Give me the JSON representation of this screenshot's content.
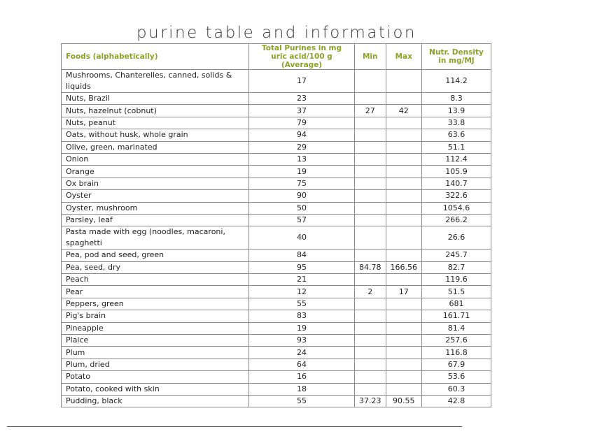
{
  "title": "purine table and information",
  "headers": [
    "Foods (alphabetically)",
    "Total Purines in mg uric acid/100 g (Average)",
    "Min",
    "Max",
    "Nutr. Density in mg/MJ"
  ],
  "rows": [
    [
      "Mushrooms, Chanterelles, canned, solids & liquids",
      "17",
      "",
      "",
      "114.2"
    ],
    [
      "Nuts, Brazil",
      "23",
      "",
      "",
      "8.3"
    ],
    [
      "Nuts, hazelnut (cobnut)",
      "37",
      "27",
      "42",
      "13.9"
    ],
    [
      "Nuts, peanut",
      "79",
      "",
      "",
      "33.8"
    ],
    [
      "Oats, without husk, whole grain",
      "94",
      "",
      "",
      "63.6"
    ],
    [
      "Olive, green, marinated",
      "29",
      "",
      "",
      "51.1"
    ],
    [
      "Onion",
      "13",
      "",
      "",
      "112.4"
    ],
    [
      "Orange",
      "19",
      "",
      "",
      "105.9"
    ],
    [
      "Ox brain",
      "75",
      "",
      "",
      "140.7"
    ],
    [
      "Oyster",
      "90",
      "",
      "",
      "322.6"
    ],
    [
      "Oyster, mushroom",
      "50",
      "",
      "",
      "1054.6"
    ],
    [
      "Parsley, leaf",
      "57",
      "",
      "",
      "266.2"
    ],
    [
      "Pasta made with egg (noodles, macaroni, spaghetti",
      "40",
      "",
      "",
      "26.6"
    ],
    [
      "Pea, pod and seed, green",
      "84",
      "",
      "",
      "245.7"
    ],
    [
      "Pea, seed, dry",
      "95",
      "84.78",
      "166.56",
      "82.7"
    ],
    [
      "Peach",
      "21",
      "",
      "",
      "119.6"
    ],
    [
      "Pear",
      "12",
      "2",
      "17",
      "51.5"
    ],
    [
      "Peppers, green",
      "55",
      "",
      "",
      "681"
    ],
    [
      "Pig's brain",
      "83",
      "",
      "",
      "161.71"
    ],
    [
      "Pineapple",
      "19",
      "",
      "",
      "81.4"
    ],
    [
      "Plaice",
      "93",
      "",
      "",
      "257.6"
    ],
    [
      "Plum",
      "24",
      "",
      "",
      "116.8"
    ],
    [
      "Plum, dried",
      "64",
      "",
      "",
      "67.9"
    ],
    [
      "Potato",
      "16",
      "",
      "",
      "53.6"
    ],
    [
      "Potato, cooked with skin",
      "18",
      "",
      "",
      "60.3"
    ],
    [
      "Pudding, black",
      "55",
      "37.23",
      "90.55",
      "42.8"
    ]
  ]
}
